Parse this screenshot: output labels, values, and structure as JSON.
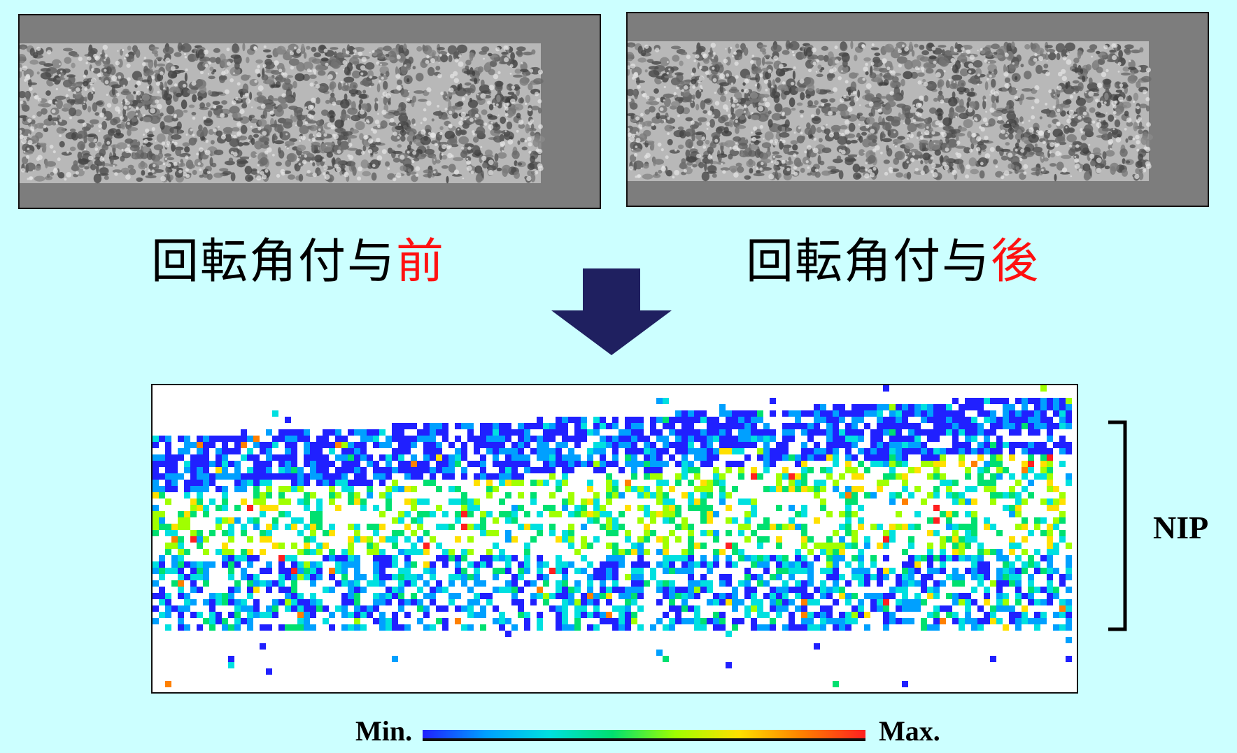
{
  "images": {
    "before_label": "回転角付与",
    "before_suffix": "前",
    "after_label": "回転角付与",
    "after_suffix": "後",
    "accent_color": "#ff1010"
  },
  "arrow": {
    "direction": "down",
    "color": "#1f2060"
  },
  "map": {
    "bracket_label": "NIP",
    "colorbar_min_label": "Min.",
    "colorbar_max_label": "Max.",
    "colormap": [
      "#2020ff",
      "#00a0ff",
      "#00e0e0",
      "#00e070",
      "#a0ff00",
      "#ffe000",
      "#ff8000",
      "#ff2020"
    ]
  }
}
